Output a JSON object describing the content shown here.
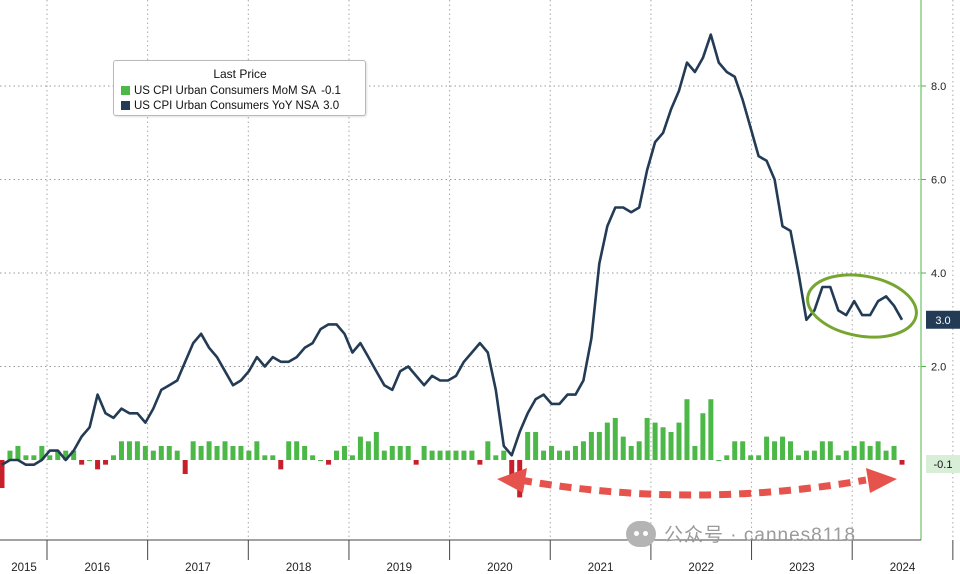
{
  "chart_data": {
    "type": "bar+line",
    "legend": {
      "title": "Last Price",
      "items": [
        {
          "label": "US CPI Urban Consumers MoM SA",
          "value": "-0.1",
          "color": "#4cb847"
        },
        {
          "label": "US CPI Urban Consumers YoY NSA",
          "value": "3.0",
          "color": "#233b55"
        }
      ]
    },
    "x_labels": [
      "2015",
      "2016",
      "2017",
      "2018",
      "2019",
      "2020",
      "2021",
      "2022",
      "2023",
      "2024"
    ],
    "y_ticks": [
      "8.0",
      "6.0",
      "4.0",
      "2.0"
    ],
    "ylim": [
      -0.8,
      9.5
    ],
    "series": [
      {
        "name": "US CPI Urban Consumers YoY NSA",
        "kind": "line",
        "color": "#233b55",
        "last_label": "3.0",
        "values": [
          -0.1,
          0.0,
          0.0,
          -0.1,
          -0.1,
          0.0,
          0.2,
          0.2,
          0.0,
          0.2,
          0.5,
          0.7,
          1.4,
          1.0,
          0.9,
          1.1,
          1.0,
          1.0,
          0.8,
          1.1,
          1.5,
          1.6,
          1.7,
          2.1,
          2.5,
          2.7,
          2.4,
          2.2,
          1.9,
          1.6,
          1.7,
          1.9,
          2.2,
          2.0,
          2.2,
          2.1,
          2.1,
          2.2,
          2.4,
          2.5,
          2.8,
          2.9,
          2.9,
          2.7,
          2.3,
          2.5,
          2.2,
          1.9,
          1.6,
          1.5,
          1.9,
          2.0,
          1.8,
          1.6,
          1.8,
          1.7,
          1.7,
          1.8,
          2.1,
          2.3,
          2.5,
          2.3,
          1.5,
          0.3,
          0.1,
          0.6,
          1.0,
          1.3,
          1.4,
          1.2,
          1.2,
          1.4,
          1.4,
          1.7,
          2.6,
          4.2,
          5.0,
          5.4,
          5.4,
          5.3,
          5.4,
          6.2,
          6.8,
          7.0,
          7.5,
          7.9,
          8.5,
          8.3,
          8.6,
          9.1,
          8.5,
          8.3,
          8.2,
          7.7,
          7.1,
          6.5,
          6.4,
          6.0,
          5.0,
          4.9,
          4.0,
          3.0,
          3.2,
          3.7,
          3.7,
          3.2,
          3.1,
          3.4,
          3.1,
          3.1,
          3.4,
          3.5,
          3.3,
          3.0
        ],
        "last_value": 3.0
      },
      {
        "name": "US CPI Urban Consumers MoM SA",
        "kind": "bar",
        "color": "#4cb847",
        "negative_color": "#c8202a",
        "values": [
          -0.6,
          0.2,
          0.3,
          0.1,
          0.1,
          0.3,
          0.1,
          0.2,
          0.2,
          0.2,
          -0.1,
          0.0,
          -0.2,
          -0.1,
          0.1,
          0.4,
          0.4,
          0.4,
          0.3,
          0.2,
          0.3,
          0.3,
          0.2,
          -0.3,
          0.4,
          0.3,
          0.4,
          0.3,
          0.4,
          0.3,
          0.3,
          0.2,
          0.4,
          0.1,
          0.1,
          -0.2,
          0.4,
          0.4,
          0.3,
          0.1,
          0.0,
          -0.1,
          0.2,
          0.3,
          0.1,
          0.5,
          0.4,
          0.6,
          0.2,
          0.3,
          0.3,
          0.3,
          -0.1,
          0.3,
          0.2,
          0.2,
          0.2,
          0.2,
          0.2,
          0.2,
          -0.1,
          0.4,
          0.1,
          0.2,
          -0.4,
          -0.8,
          0.6,
          0.6,
          0.2,
          0.3,
          0.2,
          0.2,
          0.3,
          0.4,
          0.6,
          0.6,
          0.8,
          0.9,
          0.5,
          0.3,
          0.4,
          0.9,
          0.8,
          0.7,
          0.6,
          0.8,
          1.3,
          0.3,
          1.0,
          1.3,
          0.0,
          0.1,
          0.4,
          0.4,
          0.1,
          0.1,
          0.5,
          0.4,
          0.5,
          0.4,
          0.1,
          0.2,
          0.2,
          0.4,
          0.4,
          0.1,
          0.2,
          0.3,
          0.4,
          0.3,
          0.4,
          0.2,
          0.3,
          -0.1
        ]
      }
    ],
    "annotations": [
      "ellipse around 2023-2024 YoY values",
      "dashed double arrow under 2020-2024 MoM bars"
    ],
    "grid": "dotted horizontal and vertical",
    "legend_placement": "top-left"
  },
  "watermark": {
    "text": "公众号 · cannes8118"
  }
}
